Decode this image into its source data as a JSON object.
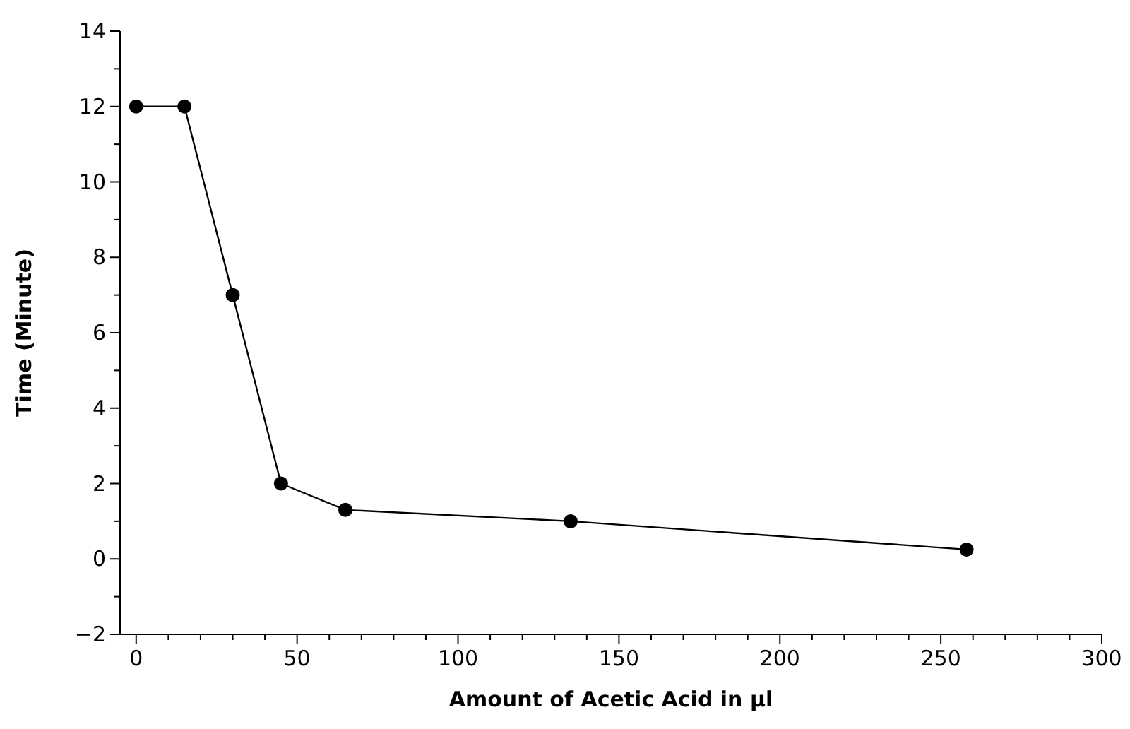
{
  "chart_data": {
    "type": "line",
    "xlabel": "Amount of Acetic Acid in µl",
    "ylabel": "Time (Minute)",
    "x": [
      0,
      15,
      30,
      45,
      65,
      135,
      258
    ],
    "series": [
      {
        "color": "#000000",
        "values": [
          12,
          12,
          7,
          2,
          1.3,
          1.0,
          0.25
        ]
      }
    ],
    "xlim": [
      -5,
      300
    ],
    "ylim": [
      -2,
      14
    ],
    "xticks": [
      0,
      {
        "value": 10,
        "label": null
      },
      {
        "value": 20,
        "label": null
      },
      {
        "value": 30,
        "label": null
      },
      {
        "value": 40,
        "label": null
      },
      50,
      {
        "value": 60,
        "label": null
      },
      {
        "value": 70,
        "label": null
      },
      {
        "value": 80,
        "label": null
      },
      {
        "value": 90,
        "label": null
      },
      100,
      {
        "value": 110,
        "label": null
      },
      {
        "value": 120,
        "label": null
      },
      {
        "value": 130,
        "label": null
      },
      {
        "value": 140,
        "label": null
      },
      150,
      {
        "value": 160,
        "label": null
      },
      {
        "value": 170,
        "label": null
      },
      {
        "value": 180,
        "label": null
      },
      {
        "value": 190,
        "label": null
      },
      200,
      {
        "value": 210,
        "label": null
      },
      {
        "value": 220,
        "label": null
      },
      {
        "value": 230,
        "label": null
      },
      {
        "value": 240,
        "label": null
      },
      250,
      {
        "value": 260,
        "label": null
      },
      {
        "value": 270,
        "label": null
      },
      {
        "value": 280,
        "label": null
      },
      {
        "value": 290,
        "label": null
      },
      300
    ],
    "yticks": [
      -2,
      {
        "value": -1,
        "label": null
      },
      0,
      {
        "value": 1,
        "label": null
      },
      2,
      {
        "value": 3,
        "label": null
      },
      4,
      {
        "value": 5,
        "label": null
      },
      6,
      {
        "value": 7,
        "label": null
      },
      8,
      {
        "value": 9,
        "label": null
      },
      10,
      {
        "value": 11,
        "label": null
      },
      12,
      {
        "value": 13,
        "label": null
      },
      14
    ],
    "grid": false,
    "marker": "circle",
    "line_style": "solid"
  }
}
